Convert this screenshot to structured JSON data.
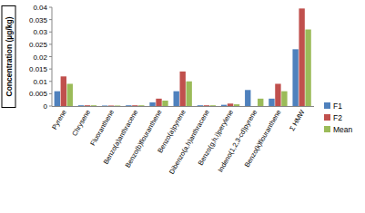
{
  "chart_data": {
    "type": "bar",
    "y_label": "Concentration (µg/kg)",
    "categories": [
      "Pyrene",
      "Chrysene",
      "Fluoranthene",
      "Benzo(a)anthracene",
      "Benzo(b)flouranthene",
      "Benzo(a)pyrene",
      "Dibenzo(a,h)anthracene",
      "Benzo(g,h,i)perylene",
      "Indeno(1,2,3-cd)pyrene",
      "Benzo(k)flouranthene",
      "Σ HMW"
    ],
    "series": [
      {
        "name": "F1",
        "color": "#4f81bd",
        "values": [
          0.006,
          0.0003,
          0.0002,
          0.0003,
          0.0015,
          0.006,
          0.0003,
          0.0005,
          0.0065,
          0.003,
          0.023
        ]
      },
      {
        "name": "F2",
        "color": "#c0504d",
        "values": [
          0.012,
          0.0003,
          0.0002,
          0.0003,
          0.003,
          0.014,
          0.0003,
          0.001,
          0,
          0.009,
          0.0395
        ]
      },
      {
        "name": "Mean",
        "color": "#9bbb59",
        "values": [
          0.009,
          0.0003,
          0.0002,
          0.0003,
          0.0022,
          0.01,
          0.0003,
          0.0007,
          0.003,
          0.006,
          0.031
        ]
      }
    ],
    "ylim": [
      0,
      0.04
    ],
    "yticks": [
      0,
      0.005,
      0.01,
      0.015,
      0.02,
      0.025,
      0.03,
      0.035,
      0.04
    ],
    "grid": false,
    "legend": "right"
  }
}
